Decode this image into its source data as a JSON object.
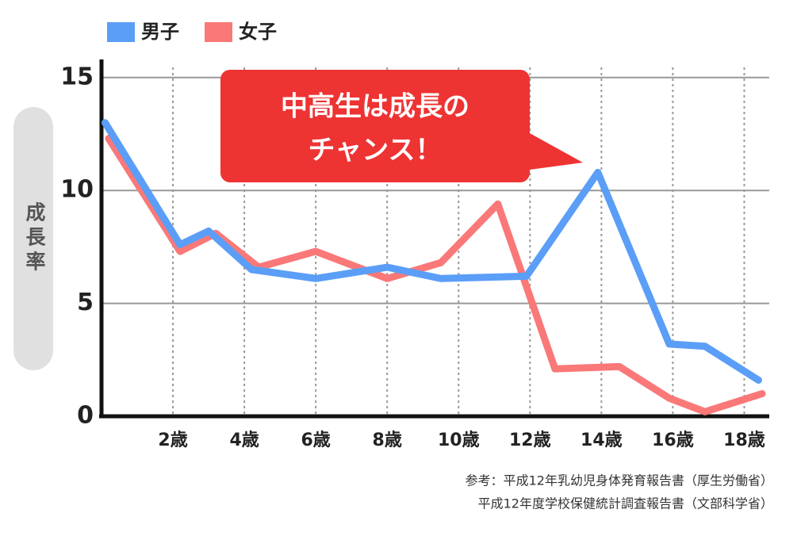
{
  "chart_data": {
    "type": "line",
    "ylabel": "成長率",
    "annotation": [
      "中高生は成長の",
      "チャンス！"
    ],
    "source": [
      "参考：平成12年乳幼児身体発育報告書（厚生労働省）",
      "平成12年度学校保健統計調査報告書（文部科学省）"
    ],
    "xlim": [
      0,
      18.7
    ],
    "xticks": [
      {
        "value": 2,
        "label": "2歳"
      },
      {
        "value": 4,
        "label": "4歳"
      },
      {
        "value": 6,
        "label": "6歳"
      },
      {
        "value": 8,
        "label": "8歳"
      },
      {
        "value": 10,
        "label": "10歳"
      },
      {
        "value": 12,
        "label": "12歳"
      },
      {
        "value": 14,
        "label": "14歳"
      },
      {
        "value": 16,
        "label": "16歳"
      },
      {
        "value": 18,
        "label": "18歳"
      }
    ],
    "ylim": [
      0,
      15.8
    ],
    "yticks": [
      0,
      5,
      10,
      15
    ],
    "grid": true,
    "series": [
      {
        "name": "男子",
        "color": "#5b9ef7",
        "x": [
          0.1,
          2.2,
          3.0,
          4.2,
          6.0,
          8.0,
          9.5,
          11.9,
          13.9,
          15.9,
          16.9,
          18.4
        ],
        "values": [
          13.0,
          7.6,
          8.2,
          6.5,
          6.1,
          6.6,
          6.1,
          6.2,
          10.8,
          3.2,
          3.1,
          1.6
        ]
      },
      {
        "name": "女子",
        "color": "#fa7878",
        "x": [
          0.2,
          2.2,
          3.2,
          4.4,
          6.0,
          8.0,
          9.5,
          11.1,
          12.7,
          14.5,
          15.9,
          16.9,
          18.5
        ],
        "values": [
          12.3,
          7.3,
          8.1,
          6.6,
          7.3,
          6.1,
          6.8,
          9.4,
          2.1,
          2.2,
          0.8,
          0.2,
          1.0
        ]
      }
    ]
  }
}
